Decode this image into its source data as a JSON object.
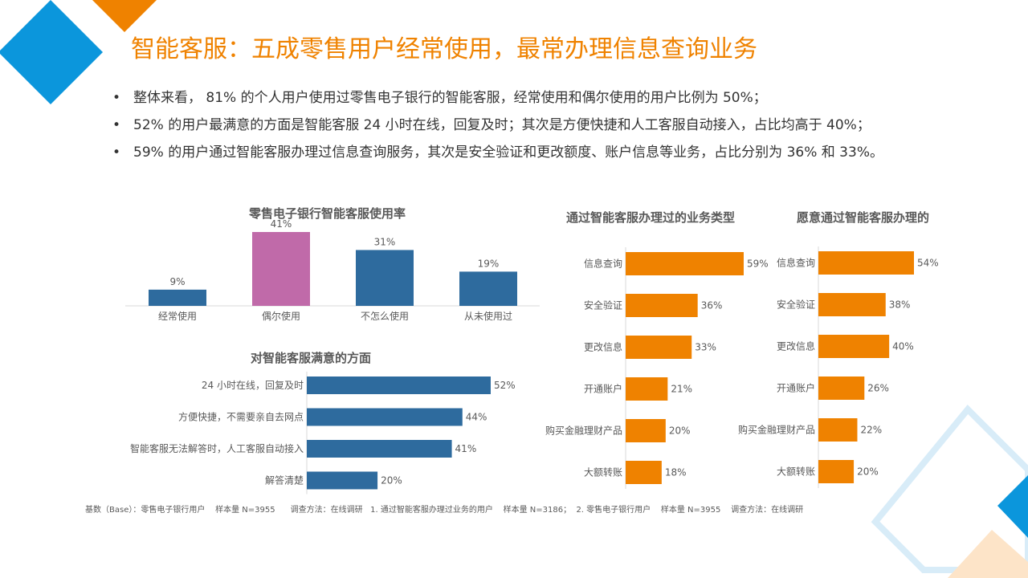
{
  "header": {
    "title": "智能客服：五成零售用户经常使用，最常办理信息查询业务"
  },
  "bullets": [
    "整体来看， 81% 的个人用户使用过零售电子银行的智能客服，经常使用和偶尔使用的用户比例为 50%；",
    "52% 的用户最满意的方面是智能客服 24 小时在线，回复及时；其次是方便快捷和人工客服自动接入，占比均高于 40%；",
    "59% 的用户通过智能客服办理过信息查询服务，其次是安全验证和更改额度、账户信息等业务，占比分别为 36% 和 33%。"
  ],
  "colors": {
    "accent": "#ef8200",
    "blue": "#2e6b9e",
    "pink": "#c06aa9",
    "deco_blue": "#0b96dc"
  },
  "chart_data": [
    {
      "id": "usage",
      "type": "bar",
      "title": "零售电子银行智能客服使用率",
      "categories": [
        "经常使用",
        "偶尔使用",
        "不怎么使用",
        "从未使用过"
      ],
      "values": [
        9,
        41,
        31,
        19
      ],
      "labels": [
        "9%",
        "41%",
        "31%",
        "19%"
      ],
      "highlight_index": 1,
      "ylim": [
        0,
        41
      ]
    },
    {
      "id": "satisfaction",
      "type": "bar",
      "orientation": "horizontal",
      "title": "对智能客服满意的方面",
      "categories": [
        "24 小时在线，回复及时",
        "方便快捷，不需要亲自去网点",
        "智能客服无法解答时，人工客服自动接入",
        "解答清楚"
      ],
      "values": [
        52,
        44,
        41,
        20
      ],
      "labels": [
        "52%",
        "44%",
        "41%",
        "20%"
      ],
      "xlim": [
        0,
        52
      ]
    },
    {
      "id": "done_via",
      "type": "bar",
      "orientation": "horizontal",
      "title": "通过智能客服办理过的业务类型",
      "categories": [
        "信息查询",
        "安全验证",
        "更改信息",
        "开通账户",
        "购买金融理财产品",
        "大额转账"
      ],
      "values": [
        59,
        36,
        33,
        21,
        20,
        18
      ],
      "labels": [
        "59%",
        "36%",
        "33%",
        "21%",
        "20%",
        "18%"
      ],
      "xlim": [
        0,
        59
      ]
    },
    {
      "id": "willing",
      "type": "bar",
      "orientation": "horizontal",
      "title": "愿意通过智能客服办理的",
      "categories": [
        "信息查询",
        "安全验证",
        "更改信息",
        "开通账户",
        "购买金融理财产品",
        "大额转账"
      ],
      "values": [
        54,
        38,
        40,
        26,
        22,
        20
      ],
      "labels": [
        "54%",
        "38%",
        "40%",
        "26%",
        "22%",
        "20%"
      ],
      "xlim": [
        0,
        54
      ]
    }
  ],
  "footnote": "基数（Base）：零售电子银行用户    样本量 N=3955      调查方法：在线调研   1. 通过智能客服办理过业务的用户    样本量 N=3186；  2. 零售电子银行用户    样本量 N=3955    调查方法：在线调研"
}
